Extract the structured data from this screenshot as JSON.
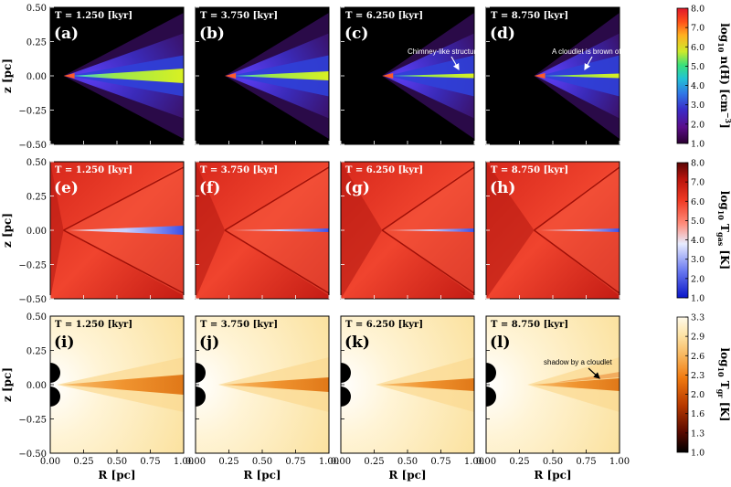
{
  "figure": {
    "rows": [
      {
        "id": "density",
        "panel_letters": [
          "(a)",
          "(b)",
          "(c)",
          "(d)"
        ],
        "colorbar": {
          "label_parts": [
            "log",
            "10",
            " n(H) [cm",
            "−3",
            "]"
          ],
          "ticks": [
            "8.0",
            "7.0",
            "6.0",
            "5.0",
            "4.0",
            "3.0",
            "2.0",
            "1.0"
          ],
          "range": [
            1.0,
            8.0
          ],
          "colormap": [
            "#2a0030",
            "#5a0d8a",
            "#3a2cc8",
            "#2f78e6",
            "#22c3d4",
            "#39e07a",
            "#cdea2a",
            "#ffb020",
            "#ff5018",
            "#e0182a"
          ]
        }
      },
      {
        "id": "gas_temperature",
        "panel_letters": [
          "(e)",
          "(f)",
          "(g)",
          "(h)"
        ],
        "colorbar": {
          "label_parts": [
            "log",
            "10",
            " T",
            "gas",
            " [K]"
          ],
          "ticks": [
            "8.0",
            "7.0",
            "6.0",
            "5.0",
            "4.0",
            "3.0",
            "2.0",
            "1.0"
          ],
          "range": [
            1.0,
            8.0
          ],
          "colormap": [
            "#0a16c8",
            "#6a7af0",
            "#e8ecff",
            "#ff8c7a",
            "#f03a24",
            "#b8140c",
            "#5a0404"
          ]
        }
      },
      {
        "id": "radiation_temperature",
        "panel_letters": [
          "(i)",
          "(j)",
          "(k)",
          "(l)"
        ],
        "colorbar": {
          "label_parts": [
            "log",
            "10",
            " T",
            "gr",
            " [K]"
          ],
          "ticks": [
            "3.3",
            "2.9",
            "2.6",
            "2.3",
            "2.0",
            "1.6",
            "1.3",
            "1.0"
          ],
          "range": [
            1.0,
            3.3
          ],
          "colormap": [
            "#000000",
            "#5a0a00",
            "#b83a00",
            "#f07a10",
            "#f8b860",
            "#fde4a8",
            "#fffaea"
          ]
        }
      }
    ],
    "times": [
      "T = 1.250 [kyr]",
      "T = 3.750 [kyr]",
      "T = 6.250 [kyr]",
      "T = 8.750 [kyr]"
    ],
    "y_axis": {
      "label": "z [pc]",
      "ticks": [
        "0.50",
        "0.25",
        "0.00",
        "−0.25",
        "−0.50"
      ]
    },
    "x_axis": {
      "label": "R [pc]",
      "ticks": [
        "0.00",
        "0.25",
        "0.50",
        "0.75",
        "1.00"
      ]
    },
    "annotations": {
      "chimney": "Chimney-like structures",
      "cloudlet": "A cloudlet is brown off",
      "shadow": "shadow by  a cloudlet"
    }
  }
}
